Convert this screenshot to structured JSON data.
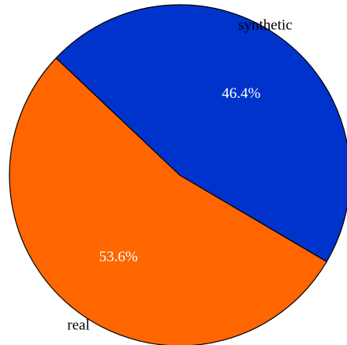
{
  "chart_data": {
    "type": "pie",
    "title": "",
    "slices": [
      {
        "label": "synthetic",
        "value": 46.4,
        "value_text": "46.4%",
        "color": "#0033cc"
      },
      {
        "label": "real",
        "value": 53.6,
        "value_text": "53.6%",
        "color": "#ff6600"
      }
    ],
    "start_angle_deg": 136.6,
    "direction": "clockwise",
    "edge_color": "#000000"
  }
}
